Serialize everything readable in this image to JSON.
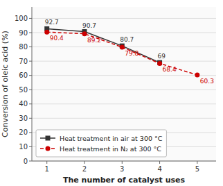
{
  "chart_data": {
    "type": "line",
    "x": [
      1,
      2,
      3,
      4,
      5
    ],
    "series": [
      {
        "name": "Heat treatment in air at 300 °C",
        "color": "#333333",
        "marker": "square",
        "line_style": "solid",
        "values": [
          92.7,
          90.7,
          80.7,
          69.0,
          null
        ]
      },
      {
        "name": "Heat treatment in N₂ at 300 °C",
        "color": "#cc0000",
        "marker": "circle",
        "line_style": "dashed",
        "values": [
          90.4,
          89.2,
          79.8,
          68.4,
          60.3
        ]
      }
    ],
    "x_label": "The number of catalyst uses",
    "y_label": "Conversion of oleic acid (%)",
    "xlim": [
      0.6,
      5.5
    ],
    "xticks": [
      1,
      2,
      3,
      4,
      5
    ],
    "ylim": [
      0,
      108
    ],
    "yticks": [
      0,
      10,
      20,
      30,
      40,
      50,
      60,
      70,
      80,
      90,
      100
    ],
    "grid": true,
    "legend": "lower left",
    "data_labels": true
  }
}
